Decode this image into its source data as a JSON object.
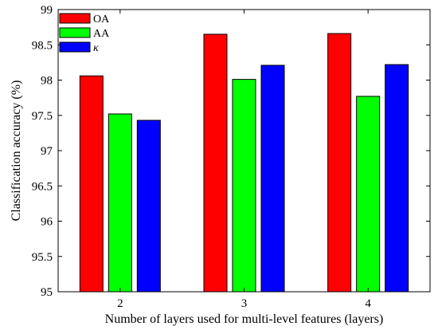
{
  "chart_data": {
    "type": "bar",
    "categories": [
      "2",
      "3",
      "4"
    ],
    "series": [
      {
        "name": "OA",
        "color": "#ff0000",
        "values": [
          98.06,
          98.65,
          98.66
        ]
      },
      {
        "name": "AA",
        "color": "#00ff00",
        "values": [
          97.52,
          98.01,
          97.77
        ]
      },
      {
        "name": "κ",
        "color": "#0000ff",
        "values": [
          97.43,
          98.21,
          98.22
        ]
      }
    ],
    "title": "",
    "xlabel": "Number of layers used for multi-level features (layers)",
    "ylabel": "Classification accuracy (%)",
    "ylim": [
      95,
      99
    ],
    "yticks": [
      "95",
      "95.5",
      "96",
      "96.5",
      "97",
      "97.5",
      "98",
      "98.5",
      "99"
    ],
    "grid": false,
    "legend_position": "top-left"
  }
}
